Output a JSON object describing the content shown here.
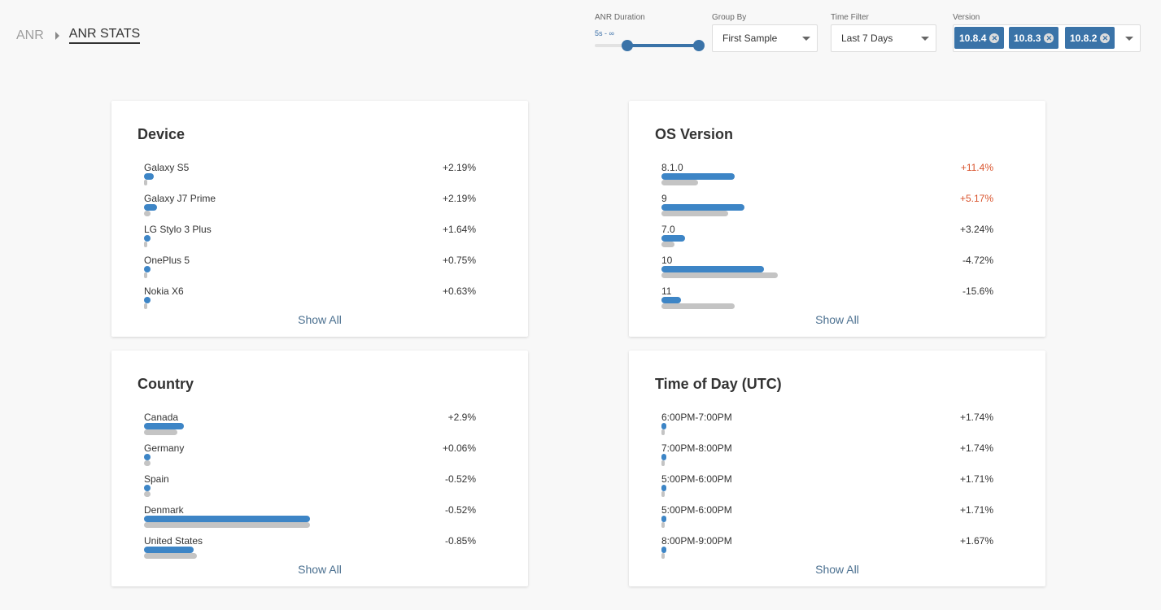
{
  "breadcrumb": {
    "root": "ANR",
    "current": "ANR STATS"
  },
  "filters": {
    "anr_duration": {
      "label": "ANR Duration",
      "range": "5s - ∞",
      "min_fraction": 0.31,
      "max_fraction": 1.0
    },
    "group_by": {
      "label": "Group By",
      "value": "First Sample"
    },
    "time_filter": {
      "label": "Time Filter",
      "value": "Last 7 Days"
    },
    "version": {
      "label": "Version",
      "chips": [
        "10.8.4",
        "10.8.3",
        "10.8.2"
      ]
    }
  },
  "colors": {
    "accent": "#3a73a8",
    "bar_current": "#3d85c6",
    "bar_previous": "#c4c4c4",
    "increase_highlight": "#d9532c"
  },
  "cards": [
    {
      "title": "Device",
      "show_all": "Show All",
      "rows": [
        {
          "label": "Galaxy S5",
          "change": "+2.19%",
          "current": 0.03,
          "previous": 0.01,
          "highlight": false
        },
        {
          "label": "Galaxy J7 Prime",
          "change": "+2.19%",
          "current": 0.04,
          "previous": 0.02,
          "highlight": false
        },
        {
          "label": "LG Stylo 3 Plus",
          "change": "+1.64%",
          "current": 0.02,
          "previous": 0.01,
          "highlight": false
        },
        {
          "label": "OnePlus 5",
          "change": "+0.75%",
          "current": 0.02,
          "previous": 0.01,
          "highlight": false
        },
        {
          "label": "Nokia X6",
          "change": "+0.63%",
          "current": 0.02,
          "previous": 0.01,
          "highlight": false
        }
      ]
    },
    {
      "title": "OS Version",
      "show_all": "Show All",
      "rows": [
        {
          "label": "8.1.0",
          "change": "+11.4%",
          "current": 0.22,
          "previous": 0.11,
          "highlight": true
        },
        {
          "label": "9",
          "change": "+5.17%",
          "current": 0.25,
          "previous": 0.2,
          "highlight": true
        },
        {
          "label": "7.0",
          "change": "+3.24%",
          "current": 0.07,
          "previous": 0.04,
          "highlight": false
        },
        {
          "label": "10",
          "change": "-4.72%",
          "current": 0.31,
          "previous": 0.35,
          "highlight": false
        },
        {
          "label": "11",
          "change": "-15.6%",
          "current": 0.06,
          "previous": 0.22,
          "highlight": false
        }
      ]
    },
    {
      "title": "Country",
      "show_all": "Show All",
      "rows": [
        {
          "label": "Canada",
          "change": "+2.9%",
          "current": 0.12,
          "previous": 0.1,
          "highlight": false
        },
        {
          "label": "Germany",
          "change": "+0.06%",
          "current": 0.02,
          "previous": 0.02,
          "highlight": false
        },
        {
          "label": "Spain",
          "change": "-0.52%",
          "current": 0.02,
          "previous": 0.02,
          "highlight": false
        },
        {
          "label": "Denmark",
          "change": "-0.52%",
          "current": 0.5,
          "previous": 0.5,
          "highlight": false
        },
        {
          "label": "United States",
          "change": "-0.85%",
          "current": 0.15,
          "previous": 0.16,
          "highlight": false
        }
      ]
    },
    {
      "title": "Time of Day (UTC)",
      "show_all": "Show All",
      "rows": [
        {
          "label": "6:00PM-7:00PM",
          "change": "+1.74%",
          "current": 0.015,
          "previous": 0.01,
          "highlight": false
        },
        {
          "label": "7:00PM-8:00PM",
          "change": "+1.74%",
          "current": 0.015,
          "previous": 0.01,
          "highlight": false
        },
        {
          "label": "5:00PM-6:00PM",
          "change": "+1.71%",
          "current": 0.015,
          "previous": 0.01,
          "highlight": false
        },
        {
          "label": "5:00PM-6:00PM",
          "change": "+1.71%",
          "current": 0.015,
          "previous": 0.01,
          "highlight": false
        },
        {
          "label": "8:00PM-9:00PM",
          "change": "+1.67%",
          "current": 0.015,
          "previous": 0.01,
          "highlight": false
        }
      ]
    }
  ]
}
